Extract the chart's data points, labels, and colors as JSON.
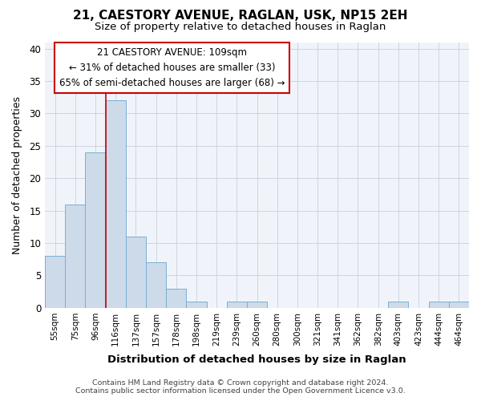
{
  "title1": "21, CAESTORY AVENUE, RAGLAN, USK, NP15 2EH",
  "title2": "Size of property relative to detached houses in Raglan",
  "xlabel": "Distribution of detached houses by size in Raglan",
  "ylabel": "Number of detached properties",
  "categories": [
    "55sqm",
    "75sqm",
    "96sqm",
    "116sqm",
    "137sqm",
    "157sqm",
    "178sqm",
    "198sqm",
    "219sqm",
    "239sqm",
    "260sqm",
    "280sqm",
    "300sqm",
    "321sqm",
    "341sqm",
    "362sqm",
    "382sqm",
    "403sqm",
    "423sqm",
    "444sqm",
    "464sqm"
  ],
  "values": [
    8,
    16,
    24,
    32,
    11,
    7,
    3,
    1,
    0,
    1,
    1,
    0,
    0,
    0,
    0,
    0,
    0,
    1,
    0,
    1,
    1
  ],
  "bar_color": "#ccdaea",
  "bar_edge_color": "#7aafd4",
  "annotation_text_line1": "21 CAESTORY AVENUE: 109sqm",
  "annotation_text_line2": "← 31% of detached houses are smaller (33)",
  "annotation_text_line3": "65% of semi-detached houses are larger (68) →",
  "red_line_bar_index": 3,
  "ylim": [
    0,
    41
  ],
  "yticks": [
    0,
    5,
    10,
    15,
    20,
    25,
    30,
    35,
    40
  ],
  "footer1": "Contains HM Land Registry data © Crown copyright and database right 2024.",
  "footer2": "Contains public sector information licensed under the Open Government Licence v3.0.",
  "background_color": "#ffffff",
  "plot_bg_color": "#f0f4fa",
  "grid_color": "#c8d0dc",
  "annotation_box_color": "#ffffff",
  "annotation_box_edge": "#cc0000",
  "red_line_color": "#cc0000",
  "title1_fontsize": 11,
  "title2_fontsize": 9.5
}
